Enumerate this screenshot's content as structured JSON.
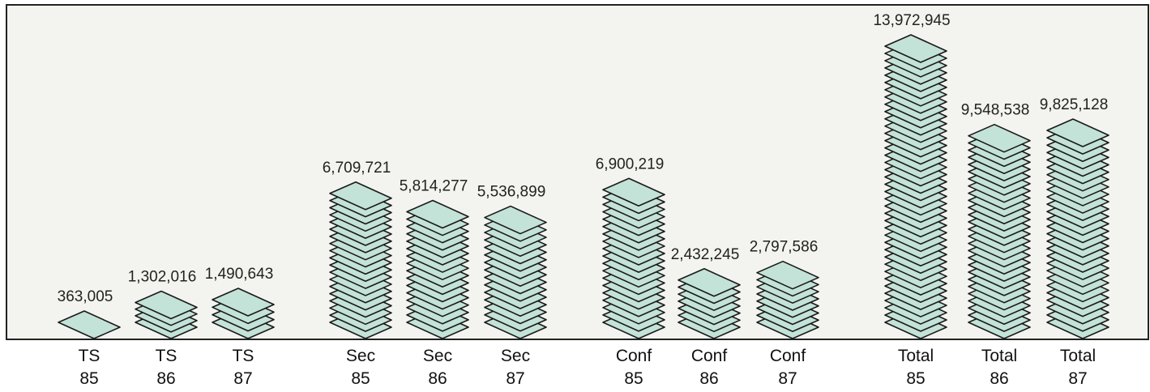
{
  "chart_data": {
    "type": "stack",
    "categories": [
      "TS\n85",
      "TS\n86",
      "TS\n87",
      "Sec\n85",
      "Sec\n86",
      "Sec\n87",
      "Conf\n85",
      "Conf\n86",
      "Conf\n87",
      "Total\n85",
      "Total\n86",
      "Total\n87"
    ],
    "values": [
      363005,
      1302016,
      1490643,
      6709721,
      5814277,
      5536899,
      6900219,
      2432245,
      2797586,
      13972945,
      9548538,
      9825128
    ],
    "value_labels": [
      "363,005",
      "1,302,016",
      "1,490,643",
      "6,709,721",
      "5,814,277",
      "5,536,899",
      "6,900,219",
      "2,432,245",
      "2,797,586",
      "13,972,945",
      "9,548,538",
      "9,825,128"
    ],
    "color": "#c3e2d8"
  }
}
